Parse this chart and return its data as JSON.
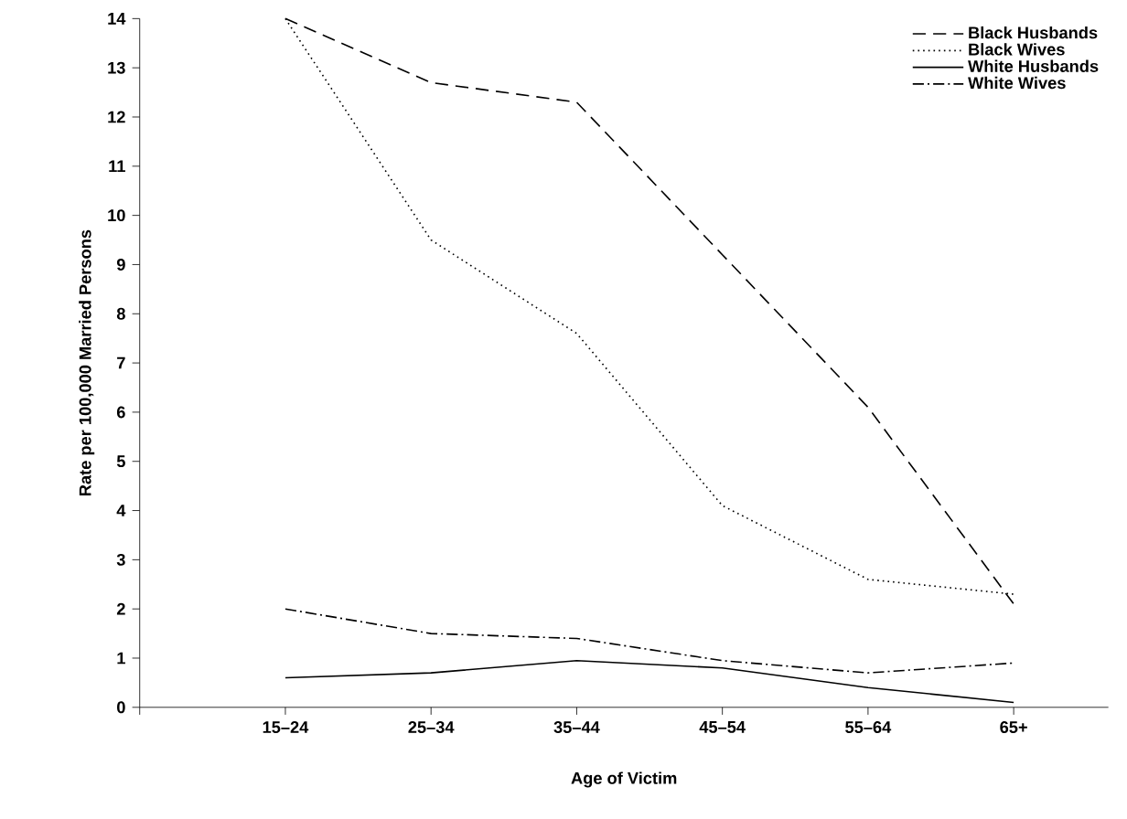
{
  "chart_data": {
    "type": "line",
    "xlabel": "Age of Victim",
    "ylabel": "Rate per 100,000 Married Persons",
    "categories": [
      "15–24",
      "25–34",
      "35–44",
      "45–54",
      "55–64",
      "65+"
    ],
    "series": [
      {
        "name": "Black Husbands",
        "color": "#000000",
        "line_style": "dashed",
        "values": [
          14.0,
          12.7,
          12.3,
          9.2,
          6.1,
          2.1
        ]
      },
      {
        "name": "Black Wives",
        "color": "#000000",
        "line_style": "dotted",
        "values": [
          14.0,
          9.5,
          7.6,
          4.1,
          2.6,
          2.3
        ]
      },
      {
        "name": "White Husbands",
        "color": "#000000",
        "line_style": "solid",
        "values": [
          0.6,
          0.7,
          0.95,
          0.8,
          0.4,
          0.1
        ]
      },
      {
        "name": "White Wives",
        "color": "#000000",
        "line_style": "dashdotted",
        "values": [
          2.0,
          1.5,
          1.4,
          0.95,
          0.7,
          0.9
        ]
      }
    ],
    "ylim": [
      0,
      14
    ],
    "yticks": [
      0,
      1,
      2,
      3,
      4,
      5,
      6,
      7,
      8,
      9,
      10,
      11,
      12,
      13,
      14
    ],
    "legend": "top right",
    "grid": false,
    "marker": "none"
  }
}
